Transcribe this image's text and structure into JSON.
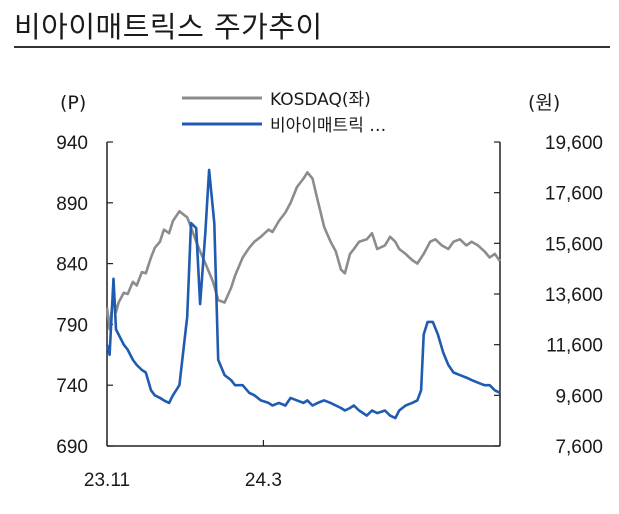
{
  "title": "비아이매트릭스 주가추이",
  "chart_data": {
    "type": "line",
    "left_unit": "(P)",
    "right_unit": "(원)",
    "x_ticks": [
      "23.11",
      "24.3"
    ],
    "left_ticks": [
      "940",
      "890",
      "840",
      "790",
      "740",
      "690"
    ],
    "right_ticks": [
      "19,600",
      "17,600",
      "15,600",
      "13,600",
      "11,600",
      "9,600",
      "7,600"
    ],
    "left_ylim": [
      690,
      940
    ],
    "right_ylim": [
      7600,
      19600
    ],
    "x_range": [
      "2023-11-01",
      "2024-08-31"
    ],
    "series": [
      {
        "name": "KOSDAQ(좌)",
        "color": "#8c8c8c",
        "axis": "left",
        "points": [
          [
            "2023-11-01",
            804
          ],
          [
            "2023-11-03",
            786
          ],
          [
            "2023-11-06",
            815
          ],
          [
            "2023-11-08",
            800
          ],
          [
            "2023-11-10",
            808
          ],
          [
            "2023-11-14",
            816
          ],
          [
            "2023-11-17",
            815
          ],
          [
            "2023-11-21",
            825
          ],
          [
            "2023-11-24",
            822
          ],
          [
            "2023-11-28",
            833
          ],
          [
            "2023-12-01",
            832
          ],
          [
            "2023-12-05",
            845
          ],
          [
            "2023-12-08",
            853
          ],
          [
            "2023-12-12",
            858
          ],
          [
            "2023-12-15",
            868
          ],
          [
            "2023-12-19",
            865
          ],
          [
            "2023-12-22",
            875
          ],
          [
            "2023-12-27",
            883
          ],
          [
            "2024-01-02",
            878
          ],
          [
            "2024-01-05",
            870
          ],
          [
            "2024-01-09",
            858
          ],
          [
            "2024-01-12",
            850
          ],
          [
            "2024-01-17",
            838
          ],
          [
            "2024-01-22",
            825
          ],
          [
            "2024-01-26",
            810
          ],
          [
            "2024-01-31",
            808
          ],
          [
            "2024-02-05",
            820
          ],
          [
            "2024-02-08",
            830
          ],
          [
            "2024-02-14",
            845
          ],
          [
            "2024-02-19",
            853
          ],
          [
            "2024-02-23",
            858
          ],
          [
            "2024-02-28",
            862
          ],
          [
            "2024-03-05",
            868
          ],
          [
            "2024-03-08",
            866
          ],
          [
            "2024-03-13",
            875
          ],
          [
            "2024-03-18",
            882
          ],
          [
            "2024-03-22",
            890
          ],
          [
            "2024-03-27",
            903
          ],
          [
            "2024-04-01",
            910
          ],
          [
            "2024-04-04",
            915
          ],
          [
            "2024-04-08",
            910
          ],
          [
            "2024-04-12",
            892
          ],
          [
            "2024-04-17",
            870
          ],
          [
            "2024-04-22",
            858
          ],
          [
            "2024-04-26",
            850
          ],
          [
            "2024-04-30",
            835
          ],
          [
            "2024-05-03",
            832
          ],
          [
            "2024-05-07",
            848
          ],
          [
            "2024-05-10",
            852
          ],
          [
            "2024-05-14",
            858
          ],
          [
            "2024-05-20",
            860
          ],
          [
            "2024-05-24",
            865
          ],
          [
            "2024-05-28",
            852
          ],
          [
            "2024-06-03",
            855
          ],
          [
            "2024-06-07",
            862
          ],
          [
            "2024-06-11",
            858
          ],
          [
            "2024-06-14",
            852
          ],
          [
            "2024-06-19",
            848
          ],
          [
            "2024-06-24",
            843
          ],
          [
            "2024-06-28",
            840
          ],
          [
            "2024-07-03",
            848
          ],
          [
            "2024-07-08",
            858
          ],
          [
            "2024-07-12",
            860
          ],
          [
            "2024-07-17",
            855
          ],
          [
            "2024-07-22",
            852
          ],
          [
            "2024-07-26",
            858
          ],
          [
            "2024-07-31",
            860
          ],
          [
            "2024-08-05",
            855
          ],
          [
            "2024-08-09",
            858
          ],
          [
            "2024-08-14",
            855
          ],
          [
            "2024-08-19",
            850
          ],
          [
            "2024-08-23",
            845
          ],
          [
            "2024-08-27",
            848
          ],
          [
            "2024-08-31",
            842
          ]
        ]
      },
      {
        "name": "비아이매트릭 …",
        "color": "#1f5bb0",
        "axis": "right",
        "points": [
          [
            "2023-11-01",
            11600
          ],
          [
            "2023-11-03",
            11200
          ],
          [
            "2023-11-06",
            14200
          ],
          [
            "2023-11-08",
            12200
          ],
          [
            "2023-11-10",
            12000
          ],
          [
            "2023-11-14",
            11600
          ],
          [
            "2023-11-17",
            11400
          ],
          [
            "2023-11-21",
            11000
          ],
          [
            "2023-11-24",
            10800
          ],
          [
            "2023-11-28",
            10600
          ],
          [
            "2023-12-01",
            10500
          ],
          [
            "2023-12-05",
            9800
          ],
          [
            "2023-12-08",
            9600
          ],
          [
            "2023-12-12",
            9500
          ],
          [
            "2023-12-15",
            9400
          ],
          [
            "2023-12-19",
            9300
          ],
          [
            "2023-12-22",
            9600
          ],
          [
            "2023-12-27",
            10000
          ],
          [
            "2024-01-02",
            12700
          ],
          [
            "2024-01-05",
            16400
          ],
          [
            "2024-01-09",
            16200
          ],
          [
            "2024-01-12",
            13200
          ],
          [
            "2024-01-16",
            16000
          ],
          [
            "2024-01-19",
            18500
          ],
          [
            "2024-01-23",
            16400
          ],
          [
            "2024-01-26",
            11000
          ],
          [
            "2024-01-31",
            10400
          ],
          [
            "2024-02-05",
            10200
          ],
          [
            "2024-02-08",
            10000
          ],
          [
            "2024-02-14",
            10000
          ],
          [
            "2024-02-19",
            9700
          ],
          [
            "2024-02-23",
            9600
          ],
          [
            "2024-02-28",
            9400
          ],
          [
            "2024-03-05",
            9300
          ],
          [
            "2024-03-08",
            9200
          ],
          [
            "2024-03-13",
            9300
          ],
          [
            "2024-03-18",
            9200
          ],
          [
            "2024-03-22",
            9500
          ],
          [
            "2024-03-27",
            9400
          ],
          [
            "2024-04-01",
            9300
          ],
          [
            "2024-04-04",
            9400
          ],
          [
            "2024-04-08",
            9200
          ],
          [
            "2024-04-12",
            9300
          ],
          [
            "2024-04-17",
            9400
          ],
          [
            "2024-04-22",
            9300
          ],
          [
            "2024-04-26",
            9200
          ],
          [
            "2024-04-30",
            9100
          ],
          [
            "2024-05-03",
            9000
          ],
          [
            "2024-05-07",
            9100
          ],
          [
            "2024-05-10",
            9200
          ],
          [
            "2024-05-14",
            9000
          ],
          [
            "2024-05-20",
            8800
          ],
          [
            "2024-05-24",
            9000
          ],
          [
            "2024-05-28",
            8900
          ],
          [
            "2024-06-03",
            9000
          ],
          [
            "2024-06-07",
            8800
          ],
          [
            "2024-06-11",
            8700
          ],
          [
            "2024-06-14",
            9000
          ],
          [
            "2024-06-19",
            9200
          ],
          [
            "2024-06-24",
            9300
          ],
          [
            "2024-06-28",
            9400
          ],
          [
            "2024-07-01",
            9800
          ],
          [
            "2024-07-03",
            12000
          ],
          [
            "2024-07-06",
            12500
          ],
          [
            "2024-07-10",
            12500
          ],
          [
            "2024-07-14",
            12000
          ],
          [
            "2024-07-18",
            11300
          ],
          [
            "2024-07-22",
            10800
          ],
          [
            "2024-07-26",
            10500
          ],
          [
            "2024-07-31",
            10400
          ],
          [
            "2024-08-05",
            10300
          ],
          [
            "2024-08-09",
            10200
          ],
          [
            "2024-08-14",
            10100
          ],
          [
            "2024-08-19",
            10000
          ],
          [
            "2024-08-23",
            10000
          ],
          [
            "2024-08-27",
            9800
          ],
          [
            "2024-08-31",
            9700
          ]
        ]
      }
    ]
  }
}
